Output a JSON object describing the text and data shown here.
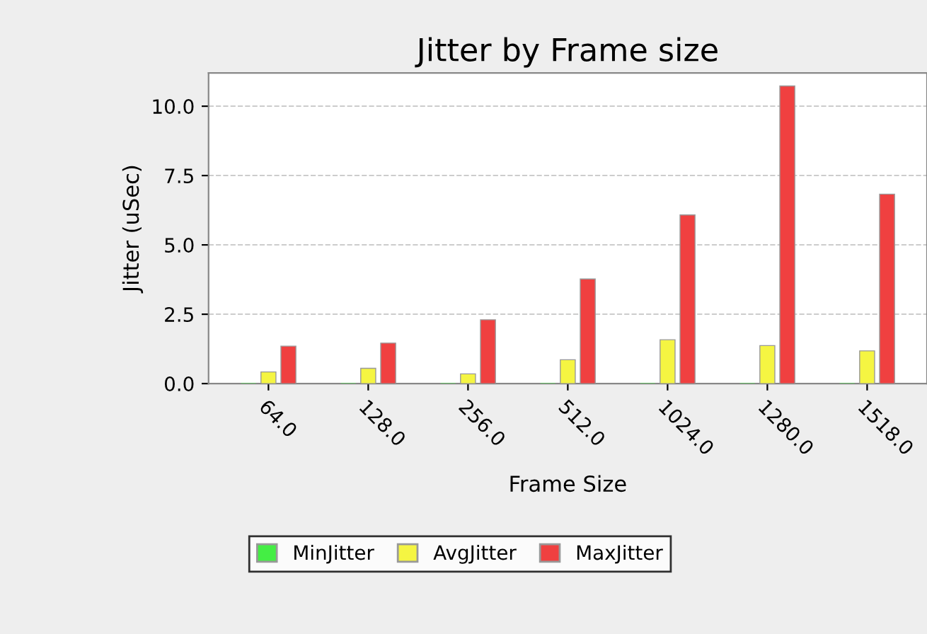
{
  "chart_data": {
    "type": "bar",
    "title": "Jitter by Frame size",
    "xlabel": "Frame Size",
    "ylabel": "Jitter (uSec)",
    "categories": [
      "64.0",
      "128.0",
      "256.0",
      "512.0",
      "1024.0",
      "1280.0",
      "1518.0"
    ],
    "series": [
      {
        "name": "MinJitter",
        "color": "#44ee44",
        "values": [
          0,
          0,
          0,
          0,
          0,
          0,
          0
        ]
      },
      {
        "name": "AvgJitter",
        "color": "#f5f542",
        "values": [
          0.42,
          0.55,
          0.35,
          0.86,
          1.58,
          1.37,
          1.18
        ]
      },
      {
        "name": "MaxJitter",
        "color": "#f04040",
        "values": [
          1.35,
          1.46,
          2.3,
          3.77,
          6.08,
          10.73,
          6.83
        ]
      }
    ],
    "ylim": [
      0,
      11.2
    ],
    "yticks": [
      {
        "value": 0,
        "label": "0.0"
      },
      {
        "value": 2.5,
        "label": "2.5"
      },
      {
        "value": 5,
        "label": "5.0"
      },
      {
        "value": 7.5,
        "label": "7.5"
      },
      {
        "value": 10,
        "label": "10.0"
      }
    ],
    "grid": "y",
    "legend": "bottom"
  }
}
